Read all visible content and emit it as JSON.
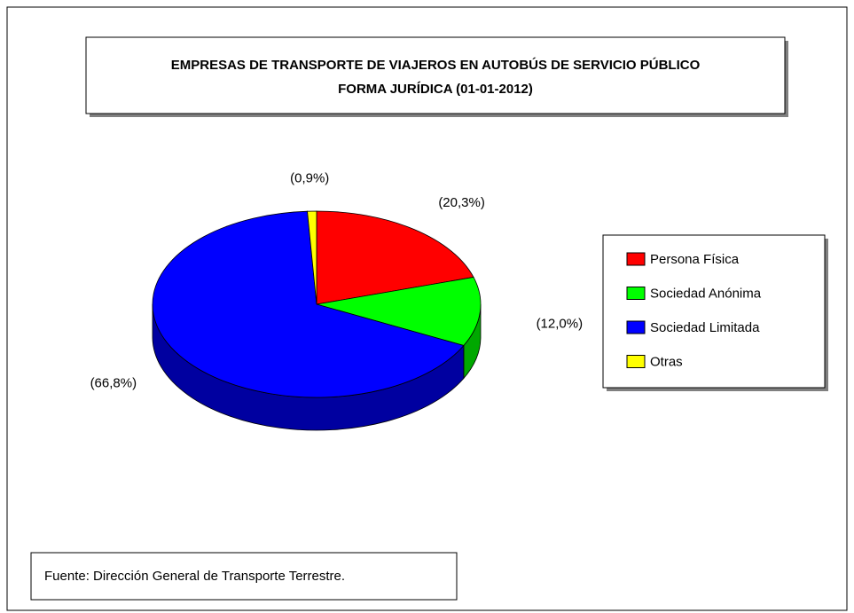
{
  "chart_data": {
    "type": "pie3d",
    "title": "EMPRESAS DE TRANSPORTE DE VIAJEROS EN AUTOBÚS DE SERVICIO PÚBLICO",
    "subtitle": "FORMA JURÍDICA (01-01-2012)",
    "categories": [
      "Persona Física",
      "Sociedad Anónima",
      "Sociedad Limitada",
      "Otras"
    ],
    "values": [
      20.3,
      12.0,
      66.8,
      0.9
    ],
    "value_labels": [
      "(20,3%)",
      "(12,0%)",
      "(66,8%)",
      "(0,9%)"
    ],
    "colors": [
      "#ff0000",
      "#00ff00",
      "#0000ff",
      "#ffff00"
    ],
    "side_colors": [
      "#b00000",
      "#00a800",
      "#0000a0",
      "#b0b000"
    ],
    "source": "Fuente: Dirección General de Transporte Terrestre."
  }
}
